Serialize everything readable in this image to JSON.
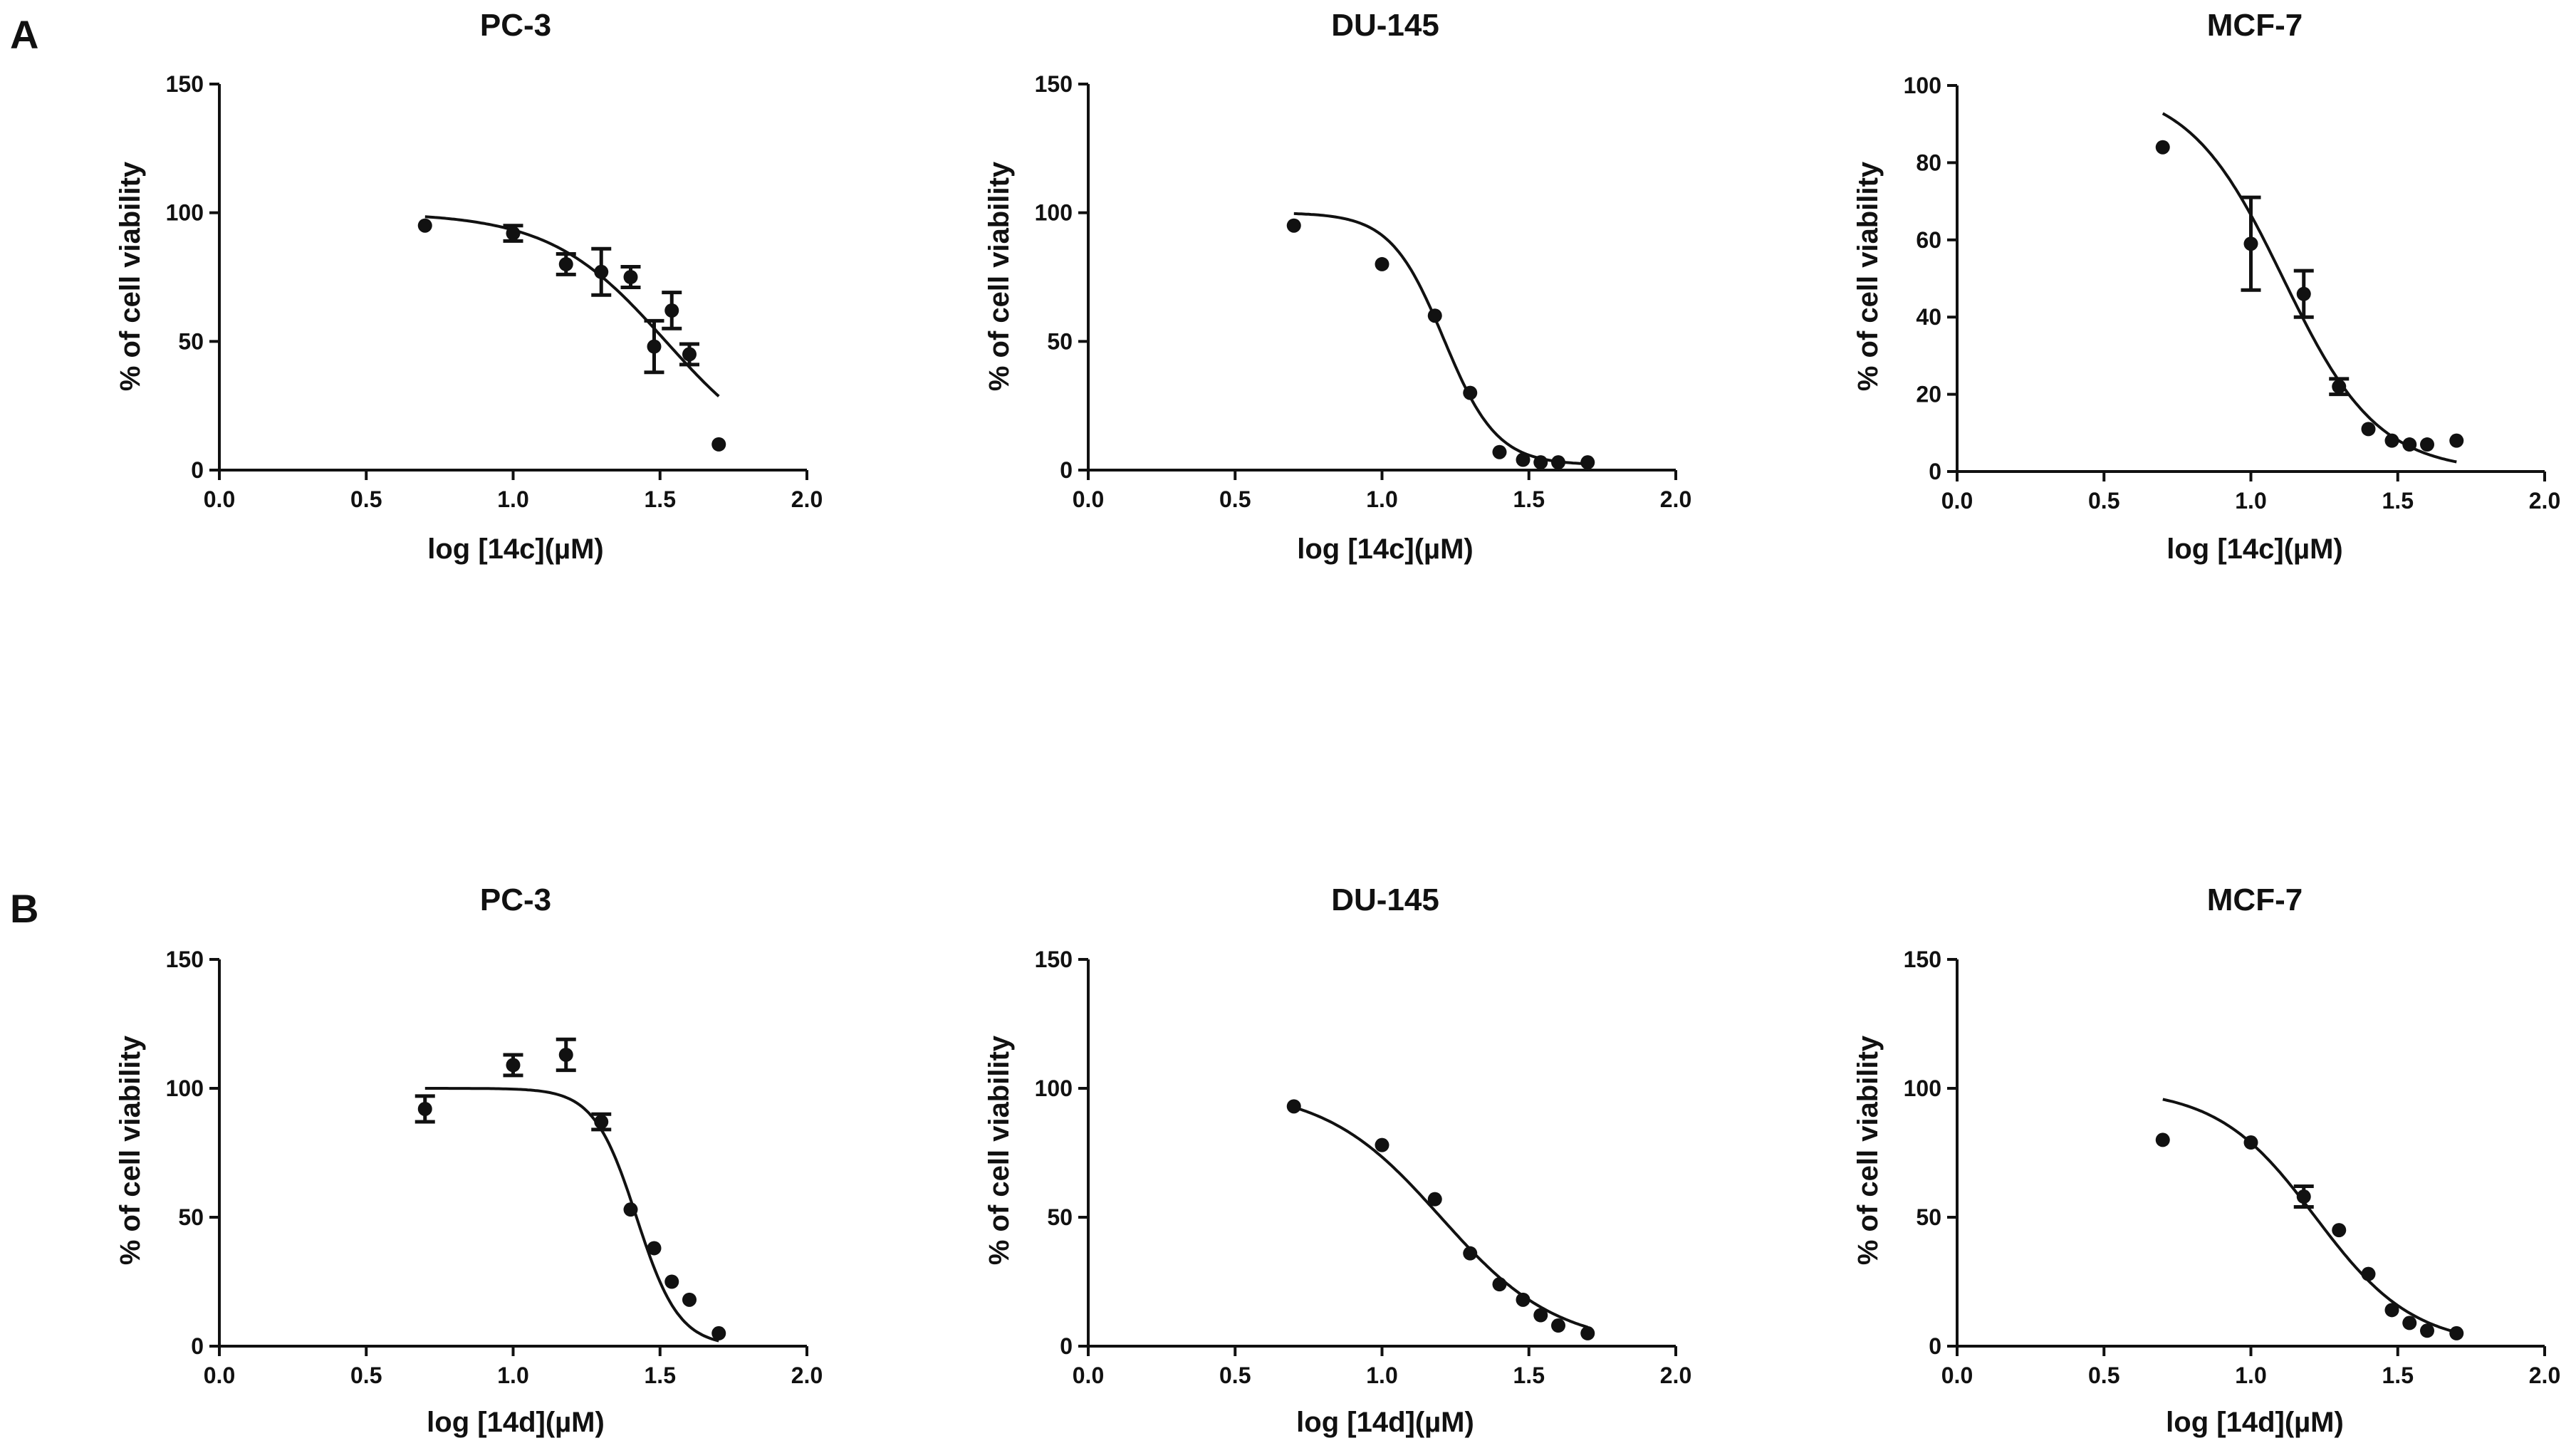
{
  "panels": [
    {
      "letter": "A"
    },
    {
      "letter": "B"
    }
  ],
  "chart_data": [
    {
      "type": "scatter",
      "panel": "A",
      "title": "PC-3",
      "xlabel": "log [14c](µM)",
      "ylabel": "% of cell viability",
      "xlim": [
        0.0,
        2.0
      ],
      "ylim": [
        0,
        150
      ],
      "xticks": [
        "0.0",
        "0.5",
        "1.0",
        "1.5",
        "2.0"
      ],
      "yticks": [
        "0",
        "50",
        "100",
        "150"
      ],
      "points": [
        {
          "x": 0.7,
          "y": 95,
          "err": 0
        },
        {
          "x": 1.0,
          "y": 92,
          "err": 3
        },
        {
          "x": 1.18,
          "y": 80,
          "err": 4
        },
        {
          "x": 1.3,
          "y": 77,
          "err": 9
        },
        {
          "x": 1.4,
          "y": 75,
          "err": 4
        },
        {
          "x": 1.48,
          "y": 48,
          "err": 10
        },
        {
          "x": 1.54,
          "y": 62,
          "err": 7
        },
        {
          "x": 1.6,
          "y": 45,
          "err": 4
        },
        {
          "x": 1.7,
          "y": 10,
          "err": 0
        }
      ],
      "fit": {
        "top": 100,
        "bottom": 0,
        "logIC50": 1.52,
        "hill": 2.2,
        "xrange": [
          0.7,
          1.7
        ]
      },
      "grid": false,
      "legend": "none"
    },
    {
      "type": "scatter",
      "panel": "A",
      "title": "DU-145",
      "xlabel": "log [14c](µM)",
      "ylabel": "% of cell viability",
      "xlim": [
        0.0,
        2.0
      ],
      "ylim": [
        0,
        150
      ],
      "xticks": [
        "0.0",
        "0.5",
        "1.0",
        "1.5",
        "2.0"
      ],
      "yticks": [
        "0",
        "50",
        "100",
        "150"
      ],
      "points": [
        {
          "x": 0.7,
          "y": 95,
          "err": 0
        },
        {
          "x": 1.0,
          "y": 80,
          "err": 0
        },
        {
          "x": 1.18,
          "y": 60,
          "err": 0
        },
        {
          "x": 1.3,
          "y": 30,
          "err": 0
        },
        {
          "x": 1.4,
          "y": 7,
          "err": 0
        },
        {
          "x": 1.48,
          "y": 4,
          "err": 0
        },
        {
          "x": 1.54,
          "y": 3,
          "err": 0
        },
        {
          "x": 1.6,
          "y": 3,
          "err": 0
        },
        {
          "x": 1.7,
          "y": 3,
          "err": 0
        }
      ],
      "fit": {
        "top": 100,
        "bottom": 2,
        "logIC50": 1.21,
        "hill": 4.8,
        "xrange": [
          0.7,
          1.7
        ]
      },
      "grid": false,
      "legend": "none"
    },
    {
      "type": "scatter",
      "panel": "A",
      "title": "MCF-7",
      "xlabel": "log [14c](µM)",
      "ylabel": "% of cell viability",
      "xlim": [
        0.0,
        2.0
      ],
      "ylim": [
        0,
        100
      ],
      "xticks": [
        "0.0",
        "0.5",
        "1.0",
        "1.5",
        "2.0"
      ],
      "yticks": [
        "0",
        "20",
        "40",
        "60",
        "80",
        "100"
      ],
      "points": [
        {
          "x": 0.7,
          "y": 84,
          "err": 0
        },
        {
          "x": 1.0,
          "y": 59,
          "err": 12
        },
        {
          "x": 1.18,
          "y": 46,
          "err": 6
        },
        {
          "x": 1.3,
          "y": 22,
          "err": 2
        },
        {
          "x": 1.4,
          "y": 11,
          "err": 0
        },
        {
          "x": 1.48,
          "y": 8,
          "err": 0
        },
        {
          "x": 1.54,
          "y": 7,
          "err": 0
        },
        {
          "x": 1.6,
          "y": 7,
          "err": 0
        },
        {
          "x": 1.7,
          "y": 8,
          "err": 0
        }
      ],
      "fit": {
        "top": 100,
        "bottom": 0,
        "logIC50": 1.11,
        "hill": 2.7,
        "xrange": [
          0.7,
          1.7
        ]
      },
      "grid": false,
      "legend": "none"
    },
    {
      "type": "scatter",
      "panel": "B",
      "title": "PC-3",
      "xlabel": "log [14d](µM)",
      "ylabel": "% of cell viability",
      "xlim": [
        0.0,
        2.0
      ],
      "ylim": [
        0,
        150
      ],
      "xticks": [
        "0.0",
        "0.5",
        "1.0",
        "1.5",
        "2.0"
      ],
      "yticks": [
        "0",
        "50",
        "100",
        "150"
      ],
      "points": [
        {
          "x": 0.7,
          "y": 92,
          "err": 5
        },
        {
          "x": 1.0,
          "y": 109,
          "err": 4
        },
        {
          "x": 1.18,
          "y": 113,
          "err": 6
        },
        {
          "x": 1.3,
          "y": 87,
          "err": 3
        },
        {
          "x": 1.4,
          "y": 53,
          "err": 0
        },
        {
          "x": 1.48,
          "y": 38,
          "err": 0
        },
        {
          "x": 1.54,
          "y": 25,
          "err": 0
        },
        {
          "x": 1.6,
          "y": 18,
          "err": 0
        },
        {
          "x": 1.7,
          "y": 5,
          "err": 0
        }
      ],
      "fit": {
        "top": 100,
        "bottom": 0,
        "logIC50": 1.42,
        "hill": 6.0,
        "xrange": [
          0.7,
          1.7
        ]
      },
      "grid": false,
      "legend": "none"
    },
    {
      "type": "scatter",
      "panel": "B",
      "title": "DU-145",
      "xlabel": "log [14d](µM)",
      "ylabel": "% of cell viability",
      "xlim": [
        0.0,
        2.0
      ],
      "ylim": [
        0,
        150
      ],
      "xticks": [
        "0.0",
        "0.5",
        "1.0",
        "1.5",
        "2.0"
      ],
      "yticks": [
        "0",
        "50",
        "100",
        "150"
      ],
      "points": [
        {
          "x": 0.7,
          "y": 93,
          "err": 0
        },
        {
          "x": 1.0,
          "y": 78,
          "err": 0
        },
        {
          "x": 1.18,
          "y": 57,
          "err": 0
        },
        {
          "x": 1.3,
          "y": 36,
          "err": 0
        },
        {
          "x": 1.4,
          "y": 24,
          "err": 0
        },
        {
          "x": 1.48,
          "y": 18,
          "err": 0
        },
        {
          "x": 1.54,
          "y": 12,
          "err": 0
        },
        {
          "x": 1.6,
          "y": 8,
          "err": 0
        },
        {
          "x": 1.7,
          "y": 5,
          "err": 0
        }
      ],
      "fit": {
        "top": 100,
        "bottom": 0,
        "logIC50": 1.2,
        "hill": 2.2,
        "xrange": [
          0.7,
          1.7
        ]
      },
      "grid": false,
      "legend": "none"
    },
    {
      "type": "scatter",
      "panel": "B",
      "title": "MCF-7",
      "xlabel": "log [14d](µM)",
      "ylabel": "% of cell viability",
      "xlim": [
        0.0,
        2.0
      ],
      "ylim": [
        0,
        150
      ],
      "xticks": [
        "0.0",
        "0.5",
        "1.0",
        "1.5",
        "2.0"
      ],
      "yticks": [
        "0",
        "50",
        "100",
        "150"
      ],
      "points": [
        {
          "x": 0.7,
          "y": 80,
          "err": 0
        },
        {
          "x": 1.0,
          "y": 79,
          "err": 0
        },
        {
          "x": 1.18,
          "y": 58,
          "err": 4
        },
        {
          "x": 1.3,
          "y": 45,
          "err": 0
        },
        {
          "x": 1.4,
          "y": 28,
          "err": 0
        },
        {
          "x": 1.48,
          "y": 14,
          "err": 0
        },
        {
          "x": 1.54,
          "y": 9,
          "err": 0
        },
        {
          "x": 1.6,
          "y": 6,
          "err": 0
        },
        {
          "x": 1.7,
          "y": 5,
          "err": 0
        }
      ],
      "fit": {
        "top": 100,
        "bottom": 0,
        "logIC50": 1.22,
        "hill": 2.6,
        "xrange": [
          0.7,
          1.7
        ]
      },
      "grid": false,
      "legend": "none"
    }
  ]
}
